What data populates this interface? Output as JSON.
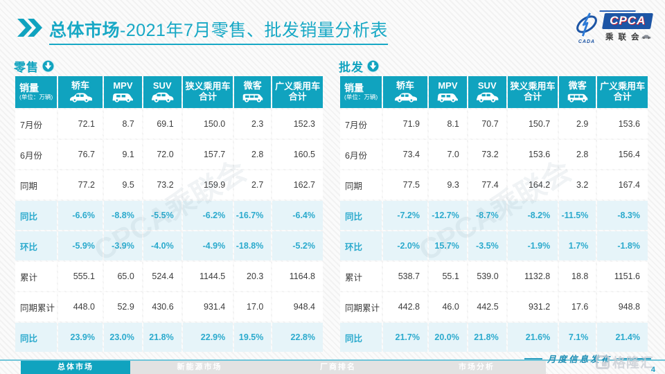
{
  "header": {
    "title_bold": "总体市场",
    "title_rest": "-2021年7月零售、批发销量分析表",
    "logo": {
      "acronym": "CPCA",
      "cn_name": "乘联会",
      "sub_acronym": "CADA"
    }
  },
  "table_meta": {
    "columns": [
      {
        "label": "销量",
        "unit": "(单位：万辆)"
      },
      {
        "label": "轿车",
        "icon": "sedan"
      },
      {
        "label": "MPV",
        "icon": "mpv"
      },
      {
        "label": "SUV",
        "icon": "suv"
      },
      {
        "label": "狭义乘用车",
        "line2": "合计"
      },
      {
        "label": "微客",
        "icon": "micro"
      },
      {
        "label": "广义乘用车",
        "line2": "合计"
      }
    ],
    "watermark": "CPCA乘联会"
  },
  "tables": [
    {
      "section": "零售",
      "rows": [
        {
          "label": "7月份",
          "highlight": false,
          "values": [
            "72.1",
            "8.7",
            "69.1",
            "150.0",
            "2.3",
            "152.3"
          ]
        },
        {
          "label": "6月份",
          "highlight": false,
          "values": [
            "76.7",
            "9.1",
            "72.0",
            "157.7",
            "2.8",
            "160.5"
          ]
        },
        {
          "label": "同期",
          "highlight": false,
          "values": [
            "77.2",
            "9.5",
            "73.2",
            "159.9",
            "2.7",
            "162.7"
          ]
        },
        {
          "label": "同比",
          "highlight": true,
          "values": [
            "-6.6%",
            "-8.8%",
            "-5.5%",
            "-6.2%",
            "-16.7%",
            "-6.4%"
          ]
        },
        {
          "label": "环比",
          "highlight": true,
          "values": [
            "-5.9%",
            "-3.9%",
            "-4.0%",
            "-4.9%",
            "-18.8%",
            "-5.2%"
          ]
        },
        {
          "label": "累计",
          "highlight": false,
          "values": [
            "555.1",
            "65.0",
            "524.4",
            "1144.5",
            "20.3",
            "1164.8"
          ]
        },
        {
          "label": "同期累计",
          "highlight": false,
          "values": [
            "448.0",
            "52.9",
            "430.6",
            "931.4",
            "17.0",
            "948.4"
          ]
        },
        {
          "label": "同比",
          "highlight": true,
          "values": [
            "23.9%",
            "23.0%",
            "21.8%",
            "22.9%",
            "19.5%",
            "22.8%"
          ]
        }
      ]
    },
    {
      "section": "批发",
      "rows": [
        {
          "label": "7月份",
          "highlight": false,
          "values": [
            "71.9",
            "8.1",
            "70.7",
            "150.7",
            "2.9",
            "153.6"
          ]
        },
        {
          "label": "6月份",
          "highlight": false,
          "values": [
            "73.4",
            "7.0",
            "73.2",
            "153.6",
            "2.8",
            "156.4"
          ]
        },
        {
          "label": "同期",
          "highlight": false,
          "values": [
            "77.5",
            "9.3",
            "77.4",
            "164.2",
            "3.2",
            "167.4"
          ]
        },
        {
          "label": "同比",
          "highlight": true,
          "values": [
            "-7.2%",
            "-12.7%",
            "-8.7%",
            "-8.2%",
            "-11.5%",
            "-8.3%"
          ]
        },
        {
          "label": "环比",
          "highlight": true,
          "values": [
            "-2.0%",
            "15.7%",
            "-3.5%",
            "-1.9%",
            "1.7%",
            "-1.8%"
          ]
        },
        {
          "label": "累计",
          "highlight": false,
          "values": [
            "538.7",
            "55.1",
            "539.0",
            "1132.8",
            "18.8",
            "1151.6"
          ]
        },
        {
          "label": "同期累计",
          "highlight": false,
          "values": [
            "442.8",
            "46.0",
            "442.5",
            "931.2",
            "17.6",
            "948.8"
          ]
        },
        {
          "label": "同比",
          "highlight": true,
          "values": [
            "21.7%",
            "20.0%",
            "21.8%",
            "21.6%",
            "7.1%",
            "21.4%"
          ]
        }
      ]
    }
  ],
  "footer": {
    "tabs": [
      {
        "label": "总体市场",
        "active": true
      },
      {
        "label": "新能源市场",
        "active": false
      },
      {
        "label": "厂商排名",
        "active": false
      },
      {
        "label": "市场分析",
        "active": false
      }
    ],
    "note": "月度信息发布",
    "brand": "格隆汇",
    "page_number": "4"
  },
  "colors": {
    "teal": "#10a3bf",
    "title_teal": "#17a8c5",
    "pct_row_bg": "#e6f4f9",
    "pct_text": "#2baacd",
    "logo_blue": "#1d55a5",
    "footer_line": "#6fc5d9"
  }
}
